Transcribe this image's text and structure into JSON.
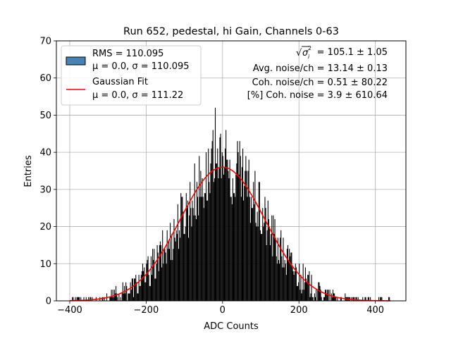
{
  "chart_data": {
    "type": "bar",
    "title": "Run 652, pedestal, hi Gain, Channels 0-63",
    "xlabel": "ADC Counts",
    "ylabel": "Entries",
    "xlim": [
      -435,
      480
    ],
    "ylim": [
      0,
      70
    ],
    "x_ticks": [
      -400,
      -200,
      0,
      200,
      400
    ],
    "x_tick_labels": [
      "−400",
      "−200",
      "0",
      "200",
      "400"
    ],
    "y_ticks": [
      0,
      10,
      20,
      30,
      40,
      50,
      60,
      70
    ],
    "grid": true,
    "legend_position": "top-left",
    "colors": {
      "histogram_legend": "#4682b4",
      "histogram_bars": "#000000",
      "fit": "#ff0000",
      "grid": "#b0b0b0"
    },
    "series": [
      {
        "name": "RMS = 110.095",
        "detail": "μ = 0.0, σ = 110.095",
        "kind": "histogram",
        "x_range": [
          -400,
          440
        ],
        "bin_width": 2,
        "peak": 55,
        "mean": 0.0,
        "sigma": 110.095
      },
      {
        "name": "Gaussian Fit",
        "detail": "μ = 0.0, σ = 111.22",
        "kind": "line",
        "mean": 0.0,
        "sigma": 111.22,
        "amplitude": 36
      }
    ],
    "annotations": {
      "sigma_label": "= 105.1 ± 1.05",
      "avg_noise": "Avg. noise/ch = 13.14 ± 0.13",
      "coh_noise": "Coh. noise/ch = 0.51 ± 80.22",
      "pct_coh_noise": "[%] Coh. noise = 3.9 ± 610.64"
    }
  }
}
